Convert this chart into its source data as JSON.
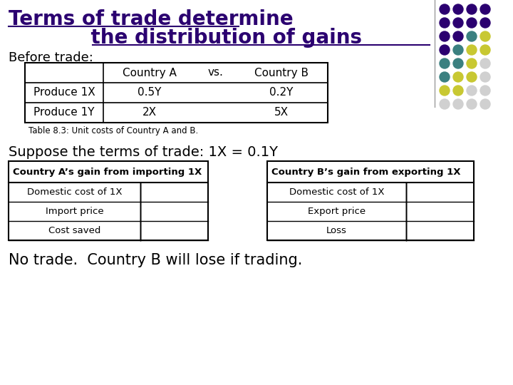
{
  "title_line1": "Terms of trade determine",
  "title_line2": "            the distribution of gains",
  "title_color": "#2B0070",
  "before_trade_label": "Before trade:",
  "table1_headers": [
    "",
    "Country A",
    "vs.",
    "Country B"
  ],
  "table1_rows": [
    [
      "Produce 1X",
      "0.5Y",
      "",
      "0.2Y"
    ],
    [
      "Produce 1Y",
      "2X",
      "",
      "5X"
    ]
  ],
  "table1_caption": "Table 8.3: Unit costs of Country A and B.",
  "suppose_text": "Suppose the terms of trade: 1X = 0.1Y",
  "table2_title": "Country A’s gain from importing 1X",
  "table2_rows": [
    [
      "Domestic cost of 1X",
      ""
    ],
    [
      "Import price",
      ""
    ],
    [
      "Cost saved",
      ""
    ]
  ],
  "table3_title": "Country B’s gain from exporting 1X",
  "table3_rows": [
    [
      "Domestic cost of 1X",
      ""
    ],
    [
      "Export price",
      ""
    ],
    [
      "Loss",
      ""
    ]
  ],
  "footer_text": "No trade.  Country B will lose if trading.",
  "dot_grid": [
    [
      "#2B0070",
      "#2B0070",
      "#2B0070"
    ],
    [
      "#2B0070",
      "#2B0070",
      "#2B0070"
    ],
    [
      "#2B0070",
      "#2B0070",
      "#3B8080"
    ],
    [
      "#2B0070",
      "#3B8080",
      "#C8C832"
    ],
    [
      "#3B8080",
      "#C8C832",
      "#C8C832"
    ],
    [
      "#3B8080",
      "#C8C832",
      "#D0D0D0"
    ],
    [
      "#C8C832",
      "#D0D0D0",
      "#D0D0D0"
    ],
    [
      "#D0D0D0",
      "#D0D0D0",
      "#D0D0D0"
    ]
  ],
  "dot_grid_full": [
    [
      "#2B0070",
      "#2B0070",
      "#2B0070",
      "#2B0070"
    ],
    [
      "#2B0070",
      "#2B0070",
      "#2B0070",
      "#2B0070"
    ],
    [
      "#2B0070",
      "#2B0070",
      "#3B8080",
      "#C8C832"
    ],
    [
      "#2B0070",
      "#3B8080",
      "#C8C832",
      "#C8C832"
    ],
    [
      "#3B8080",
      "#3B8080",
      "#C8C832",
      "#D0D0D0"
    ],
    [
      "#3B8080",
      "#C8C832",
      "#C8C832",
      "#D0D0D0"
    ],
    [
      "#C8C832",
      "#C8C832",
      "#D0D0D0",
      "#D0D0D0"
    ],
    [
      "#D0D0D0",
      "#D0D0D0",
      "#D0D0D0",
      "#D0D0D0"
    ]
  ],
  "bg_color": "#FFFFFF"
}
